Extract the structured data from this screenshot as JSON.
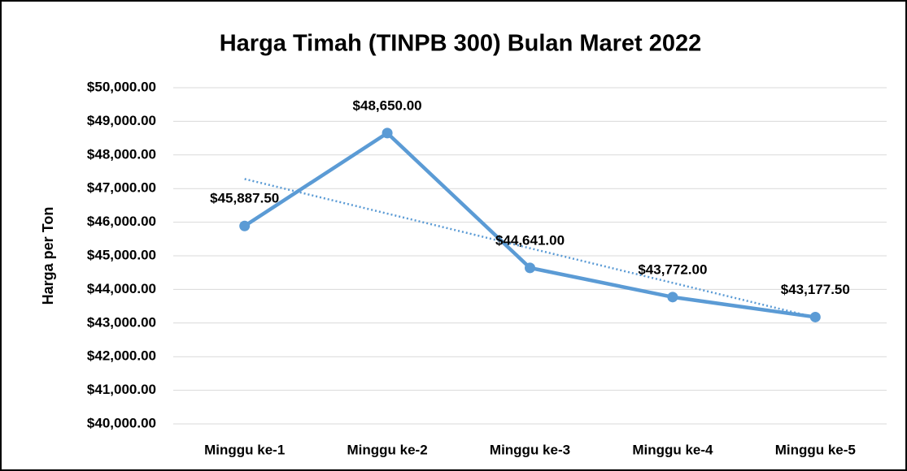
{
  "chart_data": {
    "type": "line",
    "title": "Harga Timah (TINPB 300) Bulan Maret 2022",
    "y_label": "Harga per Ton",
    "categories": [
      "Minggu ke-1",
      "Minggu ke-2",
      "Minggu ke-3",
      "Minggu ke-4",
      "Minggu ke-5"
    ],
    "series": [
      {
        "name": "Harga",
        "color": "#5b9bd5",
        "values": [
          45887.5,
          48650,
          44641,
          43772,
          43177.5
        ],
        "value_labels": [
          "$45,887.50",
          "$48,650.00",
          "$44,641.00",
          "$43,772.00",
          "$43,177.50"
        ]
      }
    ],
    "ylim": [
      40000,
      50000
    ],
    "yticks": [
      {
        "value": 40000,
        "label": "$40,000.00"
      },
      {
        "value": 41000,
        "label": "$41,000.00"
      },
      {
        "value": 42000,
        "label": "$42,000.00"
      },
      {
        "value": 43000,
        "label": "$43,000.00"
      },
      {
        "value": 44000,
        "label": "$44,000.00"
      },
      {
        "value": 45000,
        "label": "$45,000.00"
      },
      {
        "value": 46000,
        "label": "$46,000.00"
      },
      {
        "value": 47000,
        "label": "$47,000.00"
      },
      {
        "value": 48000,
        "label": "$48,000.00"
      },
      {
        "value": 49000,
        "label": "$49,000.00"
      },
      {
        "value": 50000,
        "label": "$50,000.00"
      }
    ],
    "grid": true,
    "trendline": "linear"
  }
}
